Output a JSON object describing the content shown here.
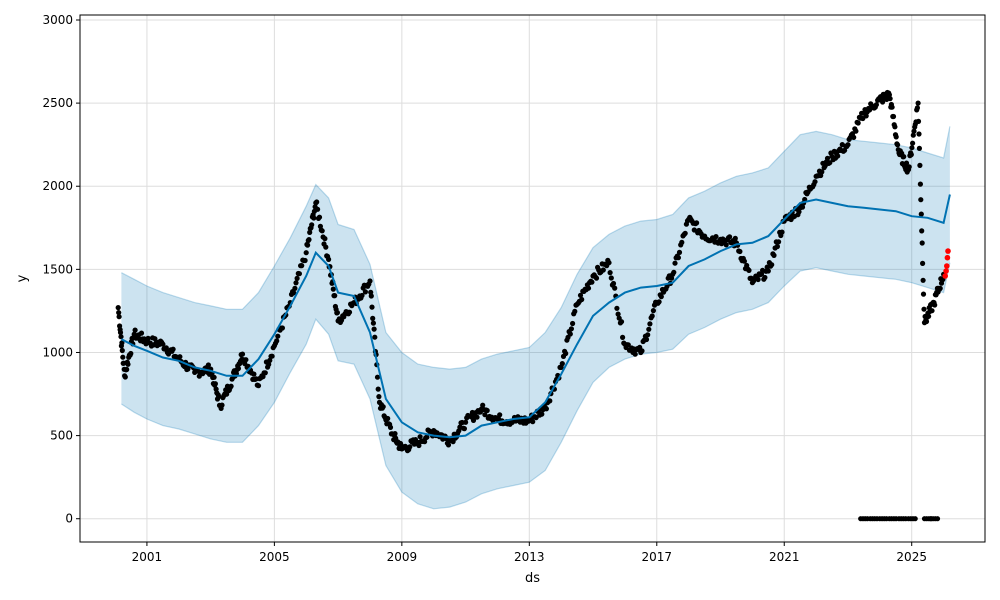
{
  "chart_data": {
    "type": "line",
    "xlabel": "ds",
    "ylabel": "y",
    "grid": true,
    "xlim": [
      1998.9,
      2027.3
    ],
    "ylim": [
      -140,
      3030
    ],
    "x_ticks": [
      2001,
      2005,
      2009,
      2013,
      2017,
      2021,
      2025
    ],
    "x_tick_labels": [
      "2001",
      "2005",
      "2009",
      "2013",
      "2017",
      "2021",
      "2025"
    ],
    "y_ticks": [
      0,
      500,
      1000,
      1500,
      2000,
      2500,
      3000
    ],
    "y_tick_labels": [
      "0",
      "500",
      "1000",
      "1500",
      "2000",
      "2500",
      "3000"
    ],
    "colors": {
      "forecast": "#0072B2",
      "interval_fill": "#0072B2",
      "observed": "#000000",
      "highlight": "#ff0000"
    },
    "series": [
      {
        "role": "forecast",
        "x": [
          2000.2,
          2000.6,
          2001.0,
          2001.5,
          2002.0,
          2002.5,
          2003.0,
          2003.5,
          2004.0,
          2004.5,
          2005.0,
          2005.5,
          2006.0,
          2006.3,
          2006.7,
          2007.0,
          2007.5,
          2008.0,
          2008.5,
          2009.0,
          2009.5,
          2010.0,
          2010.5,
          2011.0,
          2011.5,
          2012.0,
          2012.5,
          2013.0,
          2013.5,
          2014.0,
          2014.5,
          2015.0,
          2015.5,
          2016.0,
          2016.5,
          2017.0,
          2017.5,
          2018.0,
          2018.5,
          2019.0,
          2019.5,
          2020.0,
          2020.5,
          2021.0,
          2021.5,
          2022.0,
          2022.5,
          2023.0,
          2023.5,
          2024.0,
          2024.5,
          2025.0,
          2025.5,
          2026.0,
          2026.2
        ],
        "values": [
          1080,
          1040,
          1010,
          970,
          950,
          910,
          890,
          860,
          860,
          960,
          1110,
          1280,
          1460,
          1600,
          1520,
          1360,
          1340,
          1120,
          720,
          580,
          520,
          500,
          490,
          500,
          560,
          580,
          600,
          610,
          700,
          870,
          1050,
          1220,
          1300,
          1360,
          1390,
          1400,
          1420,
          1520,
          1560,
          1610,
          1650,
          1660,
          1700,
          1800,
          1900,
          1920,
          1900,
          1880,
          1870,
          1860,
          1850,
          1820,
          1810,
          1780,
          1950
        ]
      },
      {
        "role": "interval_upper",
        "x": [
          2000.2,
          2000.6,
          2001.0,
          2001.5,
          2002.0,
          2002.5,
          2003.0,
          2003.5,
          2004.0,
          2004.5,
          2005.0,
          2005.5,
          2006.0,
          2006.3,
          2006.7,
          2007.0,
          2007.5,
          2008.0,
          2008.5,
          2009.0,
          2009.5,
          2010.0,
          2010.5,
          2011.0,
          2011.5,
          2012.0,
          2012.5,
          2013.0,
          2013.5,
          2014.0,
          2014.5,
          2015.0,
          2015.5,
          2016.0,
          2016.5,
          2017.0,
          2017.5,
          2018.0,
          2018.5,
          2019.0,
          2019.5,
          2020.0,
          2020.5,
          2021.0,
          2021.5,
          2022.0,
          2022.5,
          2023.0,
          2023.5,
          2024.0,
          2024.5,
          2025.0,
          2025.5,
          2026.0,
          2026.2
        ],
        "values": [
          1480,
          1440,
          1400,
          1360,
          1330,
          1300,
          1280,
          1260,
          1260,
          1360,
          1520,
          1690,
          1880,
          2010,
          1930,
          1770,
          1740,
          1530,
          1120,
          1000,
          930,
          910,
          900,
          910,
          960,
          990,
          1010,
          1030,
          1120,
          1270,
          1470,
          1630,
          1710,
          1760,
          1790,
          1800,
          1830,
          1930,
          1970,
          2020,
          2060,
          2080,
          2110,
          2210,
          2310,
          2330,
          2310,
          2280,
          2270,
          2260,
          2250,
          2230,
          2200,
          2170,
          2360
        ]
      },
      {
        "role": "interval_lower",
        "x": [
          2000.2,
          2000.6,
          2001.0,
          2001.5,
          2002.0,
          2002.5,
          2003.0,
          2003.5,
          2004.0,
          2004.5,
          2005.0,
          2005.5,
          2006.0,
          2006.3,
          2006.7,
          2007.0,
          2007.5,
          2008.0,
          2008.5,
          2009.0,
          2009.5,
          2010.0,
          2010.5,
          2011.0,
          2011.5,
          2012.0,
          2012.5,
          2013.0,
          2013.5,
          2014.0,
          2014.5,
          2015.0,
          2015.5,
          2016.0,
          2016.5,
          2017.0,
          2017.5,
          2018.0,
          2018.5,
          2019.0,
          2019.5,
          2020.0,
          2020.5,
          2021.0,
          2021.5,
          2022.0,
          2022.5,
          2023.0,
          2023.5,
          2024.0,
          2024.5,
          2025.0,
          2025.5,
          2026.0,
          2026.2
        ],
        "values": [
          690,
          640,
          600,
          560,
          540,
          510,
          480,
          460,
          460,
          560,
          700,
          880,
          1050,
          1200,
          1110,
          950,
          930,
          720,
          320,
          160,
          90,
          60,
          70,
          100,
          150,
          180,
          200,
          220,
          290,
          460,
          650,
          820,
          910,
          960,
          990,
          1000,
          1020,
          1110,
          1150,
          1200,
          1240,
          1260,
          1300,
          1400,
          1490,
          1510,
          1490,
          1470,
          1460,
          1450,
          1440,
          1420,
          1390,
          1360,
          1540
        ]
      },
      {
        "role": "observed",
        "x": [
          2000.1,
          2000.3,
          2000.6,
          2001.0,
          2001.5,
          2002.0,
          2002.5,
          2003.0,
          2003.3,
          2003.7,
          2004.0,
          2004.5,
          2005.0,
          2005.5,
          2006.0,
          2006.3,
          2006.7,
          2007.0,
          2007.5,
          2008.0,
          2008.3,
          2008.7,
          2009.0,
          2009.5,
          2010.0,
          2010.5,
          2011.0,
          2011.5,
          2012.0,
          2012.5,
          2013.0,
          2013.5,
          2014.0,
          2014.5,
          2015.0,
          2015.5,
          2016.0,
          2016.5,
          2017.0,
          2017.5,
          2018.0,
          2018.5,
          2019.0,
          2019.5,
          2020.0,
          2020.5,
          2021.0,
          2021.5,
          2022.0,
          2022.5,
          2023.0,
          2023.5,
          2024.0,
          2024.3,
          2024.6,
          2024.9,
          2025.2,
          2025.4,
          2025.7,
          2026.0
        ],
        "values": [
          1270,
          860,
          1110,
          1070,
          1050,
          960,
          880,
          900,
          680,
          850,
          990,
          800,
          1040,
          1300,
          1600,
          1900,
          1560,
          1190,
          1300,
          1430,
          700,
          510,
          420,
          460,
          530,
          470,
          580,
          660,
          600,
          590,
          590,
          670,
          910,
          1290,
          1460,
          1540,
          1050,
          1000,
          1300,
          1470,
          1800,
          1700,
          1680,
          1660,
          1420,
          1490,
          1790,
          1870,
          2060,
          2180,
          2250,
          2440,
          2520,
          2550,
          2200,
          2100,
          2500,
          1180,
          1300,
          1470
        ]
      },
      {
        "role": "observed_zero",
        "x": [
          2023.4,
          2023.7,
          2024.0,
          2024.3,
          2024.6,
          2024.9,
          2025.4,
          2025.6
        ],
        "values": [
          0,
          0,
          0,
          0,
          0,
          0,
          0,
          0
        ]
      },
      {
        "role": "highlight",
        "x": [
          2026.05,
          2026.08,
          2026.1,
          2026.12,
          2026.14
        ],
        "values": [
          1460,
          1490,
          1520,
          1570,
          1610
        ]
      }
    ]
  }
}
